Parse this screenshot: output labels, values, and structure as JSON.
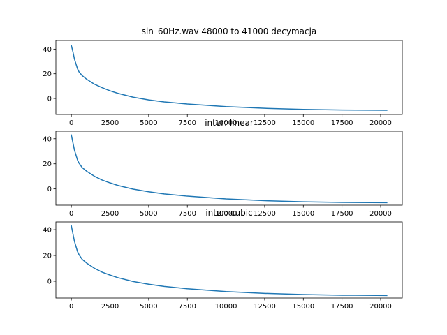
{
  "figure": {
    "background": "#ffffff"
  },
  "chart_data": [
    {
      "type": "line",
      "title": "sin_60Hz.wav 48000 to 41000 decymacja",
      "xlabel": "",
      "ylabel": "",
      "xlim": [
        -1000,
        21400
      ],
      "ylim": [
        -13,
        47
      ],
      "xticks": [
        0,
        2500,
        5000,
        7500,
        10000,
        12500,
        15000,
        17500,
        20000
      ],
      "yticks": [
        0,
        20,
        40
      ],
      "grid": false,
      "series": [
        {
          "color": "#1f77b4",
          "x": [
            0,
            100,
            200,
            300,
            400,
            500,
            700,
            1000,
            1500,
            2000,
            2500,
            3000,
            4000,
            5000,
            6000,
            7500,
            10000,
            12500,
            15000,
            17500,
            20400
          ],
          "y": [
            43,
            38,
            32,
            28,
            24,
            21.5,
            18.5,
            15.5,
            11.5,
            8.7,
            6.2,
            4.2,
            1.0,
            -1.2,
            -2.8,
            -4.5,
            -6.6,
            -8.0,
            -8.9,
            -9.4,
            -9.6
          ]
        }
      ]
    },
    {
      "type": "line",
      "title": "inter: linear",
      "xlabel": "",
      "ylabel": "",
      "xlim": [
        -1000,
        21400
      ],
      "ylim": [
        -13,
        46
      ],
      "xticks": [
        0,
        2500,
        5000,
        7500,
        10000,
        12500,
        15000,
        17500,
        20000
      ],
      "yticks": [
        0,
        20,
        40
      ],
      "grid": false,
      "series": [
        {
          "color": "#1f77b4",
          "x": [
            0,
            100,
            200,
            300,
            400,
            500,
            700,
            1000,
            1500,
            2000,
            2500,
            3000,
            4000,
            5000,
            6000,
            7500,
            10000,
            12500,
            15000,
            17500,
            20400
          ],
          "y": [
            43,
            37,
            31,
            27,
            23,
            20.5,
            17,
            14,
            10,
            7,
            4.8,
            2.8,
            -0.2,
            -2.3,
            -4.0,
            -5.8,
            -8.0,
            -9.4,
            -10.3,
            -10.8,
            -11
          ]
        }
      ]
    },
    {
      "type": "line",
      "title": "inter: cubic",
      "xlabel": "",
      "ylabel": "",
      "xlim": [
        -1000,
        21400
      ],
      "ylim": [
        -13,
        46
      ],
      "xticks": [
        0,
        2500,
        5000,
        7500,
        10000,
        12500,
        15000,
        17500,
        20000
      ],
      "yticks": [
        0,
        20,
        40
      ],
      "grid": false,
      "series": [
        {
          "color": "#1f77b4",
          "x": [
            0,
            100,
            200,
            300,
            400,
            500,
            700,
            1000,
            1500,
            2000,
            2500,
            3000,
            4000,
            5000,
            6000,
            7500,
            10000,
            12500,
            15000,
            17500,
            20400
          ],
          "y": [
            43,
            37,
            31,
            27,
            23,
            20.5,
            17,
            14,
            10,
            7,
            4.8,
            2.8,
            -0.2,
            -2.3,
            -4.0,
            -5.8,
            -8.0,
            -9.4,
            -10.3,
            -10.8,
            -11
          ]
        }
      ]
    }
  ]
}
